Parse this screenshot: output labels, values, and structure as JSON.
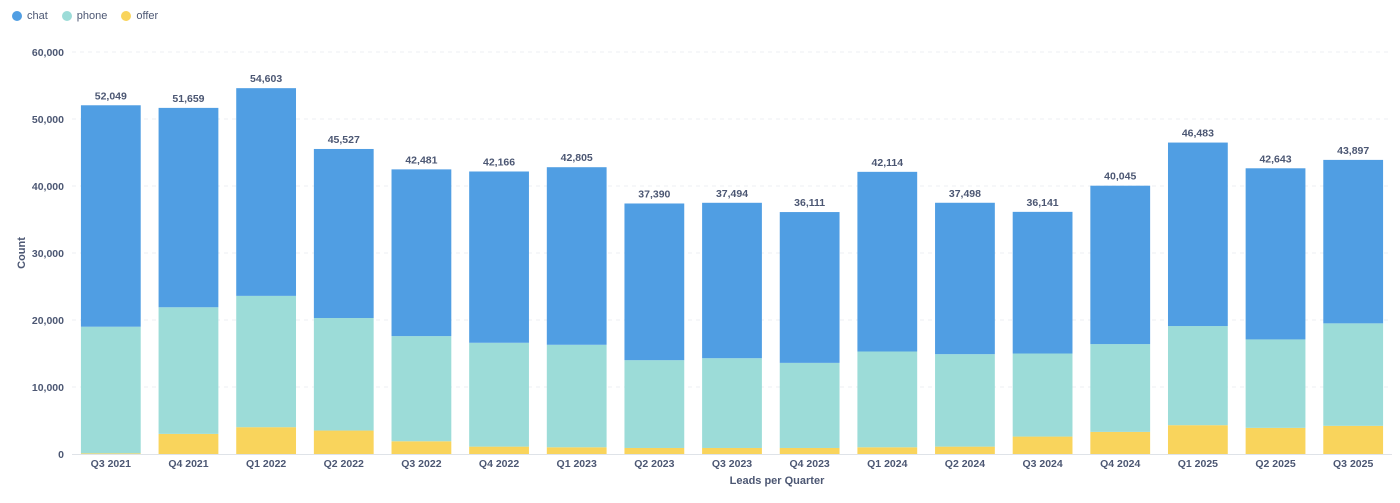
{
  "legend": [
    {
      "name": "chat",
      "color": "#509ee3"
    },
    {
      "name": "phone",
      "color": "#9cdcd8"
    },
    {
      "name": "offer",
      "color": "#f9d45c"
    }
  ],
  "chart_data": {
    "type": "bar",
    "stacked": true,
    "categories": [
      "Q3 2021",
      "Q4 2021",
      "Q1 2022",
      "Q2 2022",
      "Q3 2022",
      "Q4 2022",
      "Q1 2023",
      "Q2 2023",
      "Q3 2023",
      "Q4 2023",
      "Q1 2024",
      "Q2 2024",
      "Q3 2024",
      "Q4 2024",
      "Q1 2025",
      "Q2 2025",
      "Q3 2025"
    ],
    "series": [
      {
        "name": "offer",
        "color": "#f9d45c",
        "values": [
          100,
          3000,
          4000,
          3500,
          1900,
          1100,
          1000,
          900,
          900,
          900,
          1000,
          1100,
          2600,
          3300,
          4300,
          3900,
          4200
        ]
      },
      {
        "name": "phone",
        "color": "#9cdcd8",
        "values": [
          18900,
          18900,
          19600,
          16800,
          15700,
          15500,
          15300,
          13100,
          13400,
          12700,
          14300,
          13800,
          12400,
          13100,
          14800,
          13200,
          15300
        ]
      },
      {
        "name": "chat",
        "color": "#509ee3",
        "values": [
          33049,
          29759,
          31003,
          25227,
          24881,
          25566,
          26505,
          23390,
          23194,
          22511,
          26814,
          22598,
          21141,
          23645,
          27383,
          25543,
          24397
        ]
      }
    ],
    "totals": [
      "52,049",
      "51,659",
      "54,603",
      "45,527",
      "42,481",
      "42,166",
      "42,805",
      "37,390",
      "37,494",
      "36,111",
      "42,114",
      "37,498",
      "36,141",
      "40,045",
      "46,483",
      "42,643",
      "43,897"
    ],
    "total_values": [
      52049,
      51659,
      54603,
      45527,
      42481,
      42166,
      42805,
      37390,
      37494,
      36111,
      42114,
      37498,
      36141,
      40045,
      46483,
      42643,
      43897
    ],
    "ylim": [
      0,
      60000
    ],
    "yticks": [
      0,
      10000,
      20000,
      30000,
      40000,
      50000,
      60000
    ],
    "ytick_labels": [
      "0",
      "10,000",
      "20,000",
      "30,000",
      "40,000",
      "50,000",
      "60,000"
    ],
    "xlabel": "Leads per Quarter",
    "ylabel": "Count",
    "legend_position": "top-left",
    "grid": true
  }
}
